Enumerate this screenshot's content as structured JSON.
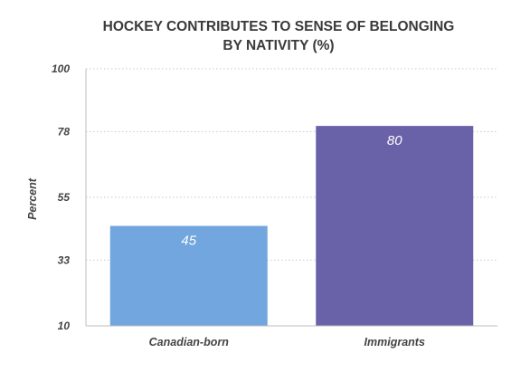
{
  "chart_data": {
    "type": "bar",
    "title_lines": [
      "HOCKEY CONTRIBUTES TO SENSE OF BELONGING",
      "BY NATIVITY (%)"
    ],
    "xlabel": "",
    "ylabel": "Percent",
    "ylim": [
      10,
      100
    ],
    "y_ticks": [
      "100",
      "78",
      "55",
      "33",
      "10"
    ],
    "categories": [
      "Canadian-born",
      "Immigrants"
    ],
    "values": [
      45,
      80
    ],
    "value_labels": [
      "45",
      "80"
    ],
    "colors": [
      "#72a6df",
      "#6a62a8"
    ],
    "grid": true
  }
}
